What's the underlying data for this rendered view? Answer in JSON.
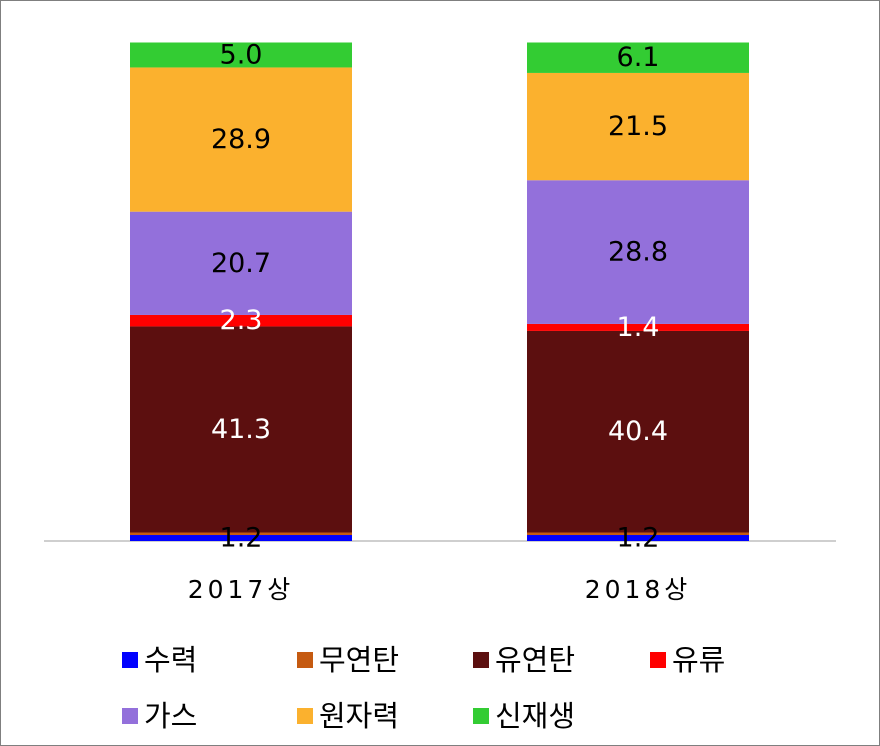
{
  "chart_data": {
    "type": "bar",
    "stacked": true,
    "categories": [
      "2017상",
      "2018상"
    ],
    "series": [
      {
        "name": "수력",
        "color": "#0000ff",
        "values": [
          1.2,
          1.2
        ]
      },
      {
        "name": "무연탄",
        "color": "#c55a11",
        "values": [
          0.5,
          0.5
        ]
      },
      {
        "name": "유연탄",
        "color": "#5c0f0f",
        "values": [
          41.3,
          40.4
        ]
      },
      {
        "name": "유류",
        "color": "#ff0000",
        "values": [
          2.3,
          1.4
        ]
      },
      {
        "name": "가스",
        "color": "#9370db",
        "values": [
          20.7,
          28.8
        ]
      },
      {
        "name": "원자력",
        "color": "#fbb12e",
        "values": [
          28.9,
          21.5
        ]
      },
      {
        "name": "신재생",
        "color": "#33cc33",
        "values": [
          5.0,
          6.1
        ]
      }
    ],
    "data_labels": [
      [
        "1.2",
        "1.2"
      ],
      [
        "",
        ""
      ],
      [
        "41.3",
        "40.4"
      ],
      [
        "2.3",
        "1.4"
      ],
      [
        "20.7",
        "28.8"
      ],
      [
        "28.9",
        "21.5"
      ],
      [
        "5.0",
        "6.1"
      ]
    ],
    "ylim": [
      0,
      100
    ],
    "grid": false,
    "legend_position": "bottom"
  }
}
